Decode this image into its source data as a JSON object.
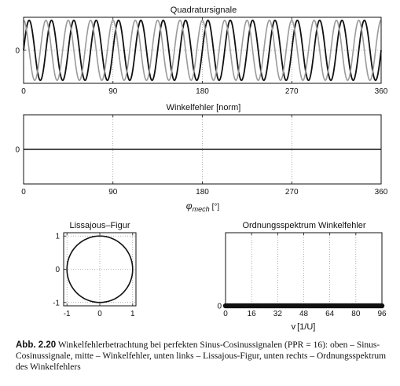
{
  "chart_data": [
    {
      "type": "line",
      "title": "Quadratursignale",
      "xlabel": "",
      "ylabel": "",
      "xlim": [
        0,
        360
      ],
      "ylim": [
        -1.1,
        1.1
      ],
      "xticks": [
        0,
        90,
        180,
        270,
        360
      ],
      "yticks": [
        0
      ],
      "grid": true,
      "periods": 16,
      "series": [
        {
          "function": "sin",
          "amplitude": 1,
          "color": "#111111"
        },
        {
          "function": "cos",
          "amplitude": 1,
          "color": "#9a9a9a"
        }
      ]
    },
    {
      "type": "line",
      "title": "Winkelfehler [norm]",
      "xlabel_main": "φ",
      "xlabel_sub": "mech",
      "xlabel_unit": "[°]",
      "ylabel": "",
      "xlim": [
        0,
        360
      ],
      "ylim": [
        -1,
        1
      ],
      "xticks": [
        0,
        90,
        180,
        270,
        360
      ],
      "yticks": [
        0
      ],
      "grid": true,
      "series": [
        {
          "x": [
            0,
            360
          ],
          "y": [
            0,
            0
          ],
          "color": "#111111"
        }
      ]
    },
    {
      "type": "scatter",
      "title": "Lissajous–Figur",
      "xlabel": "",
      "ylabel": "",
      "xlim": [
        -1.1,
        1.1
      ],
      "ylim": [
        -1.1,
        1.1
      ],
      "xticks": [
        -1,
        0,
        1
      ],
      "yticks": [
        -1,
        0,
        1
      ],
      "grid": true,
      "shape": {
        "kind": "circle",
        "center": [
          0,
          0
        ],
        "radius": 1
      }
    },
    {
      "type": "scatter",
      "title": "Ordnungsspektrum Winkelfehler",
      "xlabel_main": "v",
      "xlabel_unit": "[1/U]",
      "ylabel": "",
      "xlim": [
        0,
        96
      ],
      "ylim": [
        0,
        1
      ],
      "xticks": [
        0,
        16,
        32,
        48,
        64,
        80,
        96
      ],
      "yticks": [
        0
      ],
      "grid": true,
      "order_step": 1,
      "value": 0
    }
  ],
  "caption": {
    "label": "Abb. 2.20",
    "text": "Winkelfehlerbetrachtung bei perfekten Sinus-Cosinussignalen (PPR = 16): oben – Sinus-Cosinussignale, mitte – Winkelfehler, unten links – Lissajous-Figur, unten rechts – Ordnungsspektrum des Winkelfehlers"
  }
}
